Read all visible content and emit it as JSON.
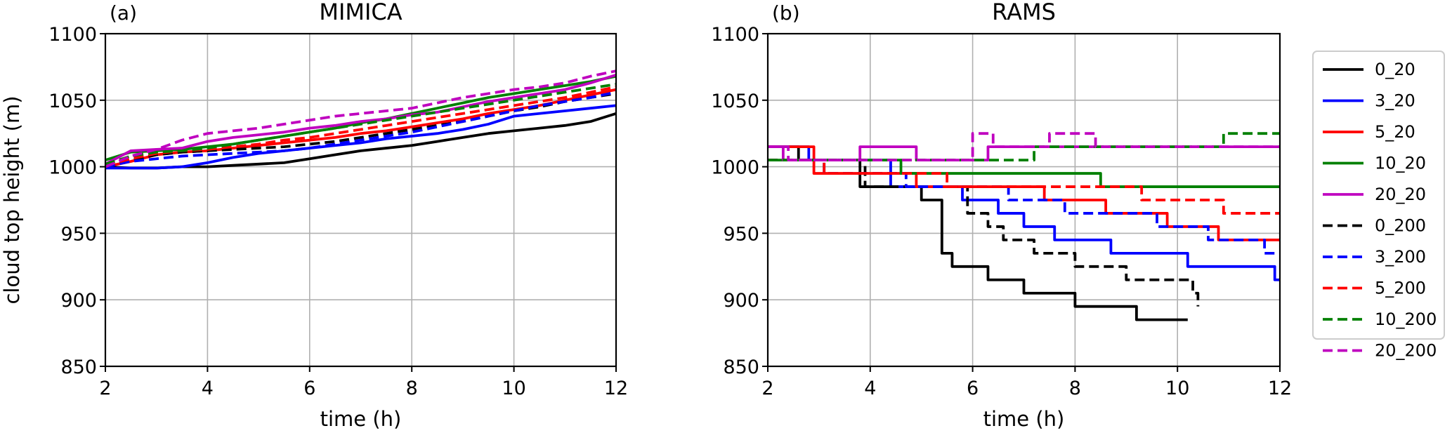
{
  "colors": {
    "black": "#000000",
    "blue": "#0000ff",
    "red": "#ff0000",
    "green": "#008000",
    "purple": "#bf00bf",
    "gray_grid": "#b0b0b0"
  },
  "legend": {
    "placement": "right-outside"
  },
  "chart_data": [
    {
      "type": "line",
      "panel_label": "(a)",
      "title": "MIMICA",
      "xlabel": "time (h)",
      "ylabel": "cloud top height (m)",
      "xlim": [
        2,
        12
      ],
      "ylim": [
        850,
        1100
      ],
      "xticks": [
        2,
        4,
        6,
        8,
        10,
        12
      ],
      "yticks": [
        850,
        900,
        950,
        1000,
        1050,
        1100
      ],
      "grid": true,
      "series": [
        {
          "name": "0_20",
          "color": "#000000",
          "dash": "solid",
          "x": [
            2,
            2.5,
            3,
            3.5,
            4,
            4.5,
            5,
            5.5,
            6,
            6.5,
            7,
            7.5,
            8,
            8.5,
            9,
            9.5,
            10,
            10.5,
            11,
            11.5,
            12
          ],
          "y": [
            1000,
            999,
            999,
            1000,
            1000,
            1001,
            1002,
            1003,
            1006,
            1009,
            1012,
            1014,
            1016,
            1019,
            1022,
            1025,
            1027,
            1029,
            1031,
            1034,
            1040
          ]
        },
        {
          "name": "3_20",
          "color": "#0000ff",
          "dash": "solid",
          "x": [
            2,
            2.5,
            3,
            3.5,
            4,
            4.5,
            5,
            5.5,
            6,
            6.5,
            7,
            7.5,
            8,
            8.5,
            9,
            9.5,
            10,
            10.5,
            11,
            11.5,
            12
          ],
          "y": [
            999,
            999,
            999,
            1000,
            1003,
            1007,
            1010,
            1012,
            1014,
            1016,
            1018,
            1021,
            1023,
            1025,
            1028,
            1032,
            1038,
            1040,
            1042,
            1044,
            1046
          ]
        },
        {
          "name": "5_20",
          "color": "#ff0000",
          "dash": "solid",
          "x": [
            2,
            2.5,
            3,
            3.5,
            4,
            4.5,
            5,
            5.5,
            6,
            6.5,
            7,
            7.5,
            8,
            8.5,
            9,
            9.5,
            10,
            10.5,
            11,
            11.5,
            12
          ],
          "y": [
            1000,
            1004,
            1009,
            1011,
            1012,
            1014,
            1016,
            1018,
            1020,
            1022,
            1025,
            1027,
            1030,
            1033,
            1036,
            1040,
            1043,
            1046,
            1050,
            1054,
            1058
          ]
        },
        {
          "name": "10_20",
          "color": "#008000",
          "dash": "solid",
          "x": [
            2,
            2.5,
            3,
            3.5,
            4,
            4.5,
            5,
            5.5,
            6,
            6.5,
            7,
            7.5,
            8,
            8.5,
            9,
            9.5,
            10,
            10.5,
            11,
            11.5,
            12
          ],
          "y": [
            1005,
            1011,
            1012,
            1013,
            1015,
            1017,
            1020,
            1023,
            1026,
            1029,
            1033,
            1036,
            1040,
            1044,
            1048,
            1052,
            1055,
            1058,
            1061,
            1064,
            1068
          ]
        },
        {
          "name": "20_20",
          "color": "#bf00bf",
          "dash": "solid",
          "x": [
            2,
            2.5,
            3,
            3.5,
            4,
            4.5,
            5,
            5.5,
            6,
            6.5,
            7,
            7.5,
            8,
            8.5,
            9,
            9.5,
            10,
            10.5,
            11,
            11.5,
            12
          ],
          "y": [
            1002,
            1012,
            1013,
            1014,
            1019,
            1022,
            1024,
            1026,
            1029,
            1031,
            1034,
            1036,
            1039,
            1041,
            1045,
            1049,
            1052,
            1055,
            1058,
            1063,
            1069
          ]
        },
        {
          "name": "0_200",
          "color": "#000000",
          "dash": "dashed",
          "x": [
            2,
            2.5,
            3,
            3.5,
            4,
            4.5,
            5,
            5.5,
            6,
            6.5,
            7,
            7.5,
            8,
            8.5,
            9,
            9.5,
            10,
            10.5,
            11,
            11.5,
            12
          ],
          "y": [
            1000,
            1005,
            1009,
            1011,
            1012,
            1013,
            1014,
            1015,
            1017,
            1019,
            1022,
            1025,
            1028,
            1031,
            1034,
            1038,
            1042,
            1045,
            1049,
            1052,
            1055
          ]
        },
        {
          "name": "3_200",
          "color": "#0000ff",
          "dash": "dashed",
          "x": [
            2,
            2.5,
            3,
            3.5,
            4,
            4.5,
            5,
            5.5,
            6,
            6.5,
            7,
            7.5,
            8,
            8.5,
            9,
            9.5,
            10,
            10.5,
            11,
            11.5,
            12
          ],
          "y": [
            1000,
            1004,
            1006,
            1008,
            1009,
            1010,
            1011,
            1012,
            1014,
            1017,
            1020,
            1023,
            1026,
            1030,
            1034,
            1038,
            1042,
            1046,
            1049,
            1052,
            1056
          ]
        },
        {
          "name": "5_200",
          "color": "#ff0000",
          "dash": "dashed",
          "x": [
            2,
            2.5,
            3,
            3.5,
            4,
            4.5,
            5,
            5.5,
            6,
            6.5,
            7,
            7.5,
            8,
            8.5,
            9,
            9.5,
            10,
            10.5,
            11,
            11.5,
            12
          ],
          "y": [
            1001,
            1006,
            1010,
            1012,
            1013,
            1015,
            1017,
            1020,
            1022,
            1025,
            1028,
            1031,
            1034,
            1037,
            1040,
            1043,
            1046,
            1049,
            1052,
            1056,
            1060
          ]
        },
        {
          "name": "10_200",
          "color": "#008000",
          "dash": "dashed",
          "x": [
            2,
            2.5,
            3,
            3.5,
            4,
            4.5,
            5,
            5.5,
            6,
            6.5,
            7,
            7.5,
            8,
            8.5,
            9,
            9.5,
            10,
            10.5,
            11,
            11.5,
            12
          ],
          "y": [
            1002,
            1008,
            1011,
            1012,
            1014,
            1017,
            1020,
            1023,
            1026,
            1029,
            1032,
            1035,
            1038,
            1041,
            1044,
            1047,
            1050,
            1053,
            1056,
            1059,
            1062
          ]
        },
        {
          "name": "20_200",
          "color": "#bf00bf",
          "dash": "dashed",
          "x": [
            2,
            2.5,
            3,
            3.5,
            4,
            4.5,
            5,
            5.5,
            6,
            6.5,
            7,
            7.5,
            8,
            8.5,
            9,
            9.5,
            10,
            10.5,
            11,
            11.5,
            12
          ],
          "y": [
            1000,
            1008,
            1013,
            1020,
            1025,
            1027,
            1029,
            1032,
            1035,
            1038,
            1040,
            1042,
            1044,
            1048,
            1052,
            1055,
            1058,
            1060,
            1063,
            1068,
            1072
          ]
        }
      ]
    },
    {
      "type": "line",
      "panel_label": "(b)",
      "title": "RAMS",
      "xlabel": "time (h)",
      "ylabel": "",
      "xlim": [
        2,
        12
      ],
      "ylim": [
        850,
        1100
      ],
      "xticks": [
        2,
        4,
        6,
        8,
        10,
        12
      ],
      "yticks": [
        850,
        900,
        950,
        1000,
        1050,
        1100
      ],
      "grid": true,
      "series": [
        {
          "name": "0_20",
          "color": "#000000",
          "dash": "solid",
          "step": true,
          "x": [
            2,
            2.6,
            3.8,
            5.0,
            5.4,
            5.6,
            6.3,
            7.0,
            8.0,
            9.2,
            10.2
          ],
          "y": [
            1015,
            1005,
            985,
            975,
            935,
            925,
            915,
            905,
            895,
            885,
            885
          ]
        },
        {
          "name": "3_20",
          "color": "#0000ff",
          "dash": "solid",
          "step": true,
          "x": [
            2,
            2.8,
            4.4,
            5.8,
            6.5,
            7.0,
            7.6,
            8.7,
            10.2,
            11.9,
            12
          ],
          "y": [
            1015,
            1005,
            985,
            975,
            965,
            955,
            945,
            935,
            925,
            915,
            915
          ]
        },
        {
          "name": "5_20",
          "color": "#ff0000",
          "dash": "solid",
          "step": true,
          "x": [
            2,
            2.9,
            4.9,
            6.0,
            7.4,
            8.6,
            9.8,
            10.8,
            12
          ],
          "y": [
            1015,
            995,
            985,
            985,
            975,
            965,
            955,
            945,
            945
          ]
        },
        {
          "name": "10_20",
          "color": "#008000",
          "dash": "solid",
          "step": true,
          "x": [
            2,
            4.0,
            4.6,
            8.5,
            12
          ],
          "y": [
            1005,
            1005,
            995,
            985,
            985
          ]
        },
        {
          "name": "20_20",
          "color": "#bf00bf",
          "dash": "solid",
          "step": true,
          "x": [
            2,
            2.3,
            3.8,
            4.9,
            6.3,
            12
          ],
          "y": [
            1015,
            1005,
            1015,
            1005,
            1015,
            1015
          ]
        },
        {
          "name": "0_200",
          "color": "#000000",
          "dash": "dashed",
          "step": true,
          "x": [
            2,
            3.9,
            5.9,
            6.3,
            6.6,
            7.2,
            8.0,
            9.0,
            10.3,
            10.4
          ],
          "y": [
            1005,
            985,
            965,
            955,
            945,
            935,
            925,
            915,
            905,
            895
          ]
        },
        {
          "name": "3_200",
          "color": "#0000ff",
          "dash": "dashed",
          "step": true,
          "x": [
            2,
            3.1,
            4.7,
            6.7,
            7.8,
            9.6,
            10.6,
            11.7,
            12
          ],
          "y": [
            1005,
            995,
            985,
            975,
            965,
            955,
            945,
            935,
            935
          ]
        },
        {
          "name": "5_200",
          "color": "#ff0000",
          "dash": "dashed",
          "step": true,
          "x": [
            2,
            3.1,
            5.5,
            8.1,
            9.3,
            10.9,
            12
          ],
          "y": [
            1005,
            995,
            985,
            985,
            975,
            965,
            965
          ]
        },
        {
          "name": "10_200",
          "color": "#008000",
          "dash": "dashed",
          "step": true,
          "x": [
            2,
            4.4,
            7.2,
            10.9,
            12
          ],
          "y": [
            1005,
            1005,
            1015,
            1025,
            1025
          ]
        },
        {
          "name": "20_200",
          "color": "#bf00bf",
          "dash": "dashed",
          "step": true,
          "x": [
            2,
            2.4,
            2.9,
            6.0,
            6.4,
            7.5,
            8.4,
            9.5,
            12
          ],
          "y": [
            1015,
            1005,
            1005,
            1025,
            1015,
            1025,
            1015,
            1015,
            1015
          ]
        }
      ]
    }
  ]
}
